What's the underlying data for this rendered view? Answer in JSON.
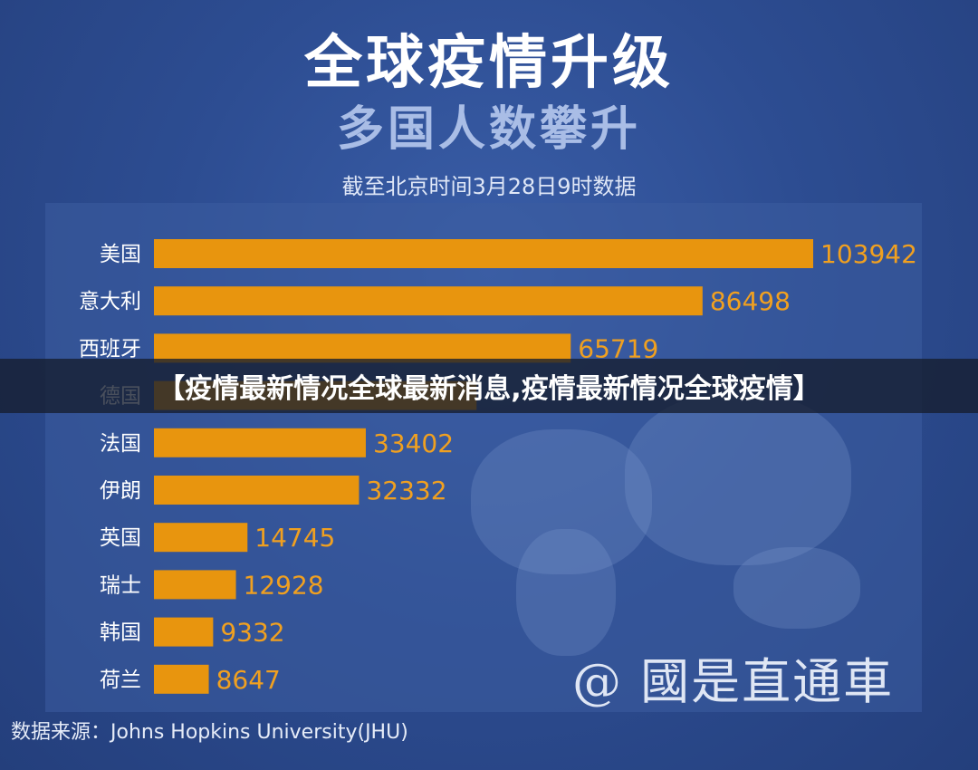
{
  "title": "全球疫情升级",
  "subtitle": "多国人数攀升",
  "date_note": "截至北京时间3月28日9时数据",
  "source": "数据来源：Johns Hopkins University(JHU)",
  "watermark": "@ 國是直通車",
  "overlay_headline": "【疫情最新情况全球最新消息,疫情最新情况全球疫情】",
  "colors": {
    "bar": "#e8950e",
    "value_label": "#f0a020",
    "background": "#2b4a8c",
    "category_label": "#ffffff"
  },
  "chart_data": {
    "type": "bar",
    "orientation": "horizontal",
    "categories": [
      "美国",
      "意大利",
      "西班牙",
      "德国",
      "法国",
      "伊朗",
      "英国",
      "瑞士",
      "韩国",
      "荷兰"
    ],
    "values": [
      103942,
      86498,
      65719,
      50871,
      33402,
      32332,
      14745,
      12928,
      9332,
      8647
    ],
    "value_labels": [
      "103942",
      "86498",
      "65719",
      "",
      "33402",
      "32332",
      "14745",
      "12928",
      "9332",
      "8647"
    ],
    "xlim": [
      0,
      103942
    ],
    "grid": false,
    "legend": "none"
  }
}
